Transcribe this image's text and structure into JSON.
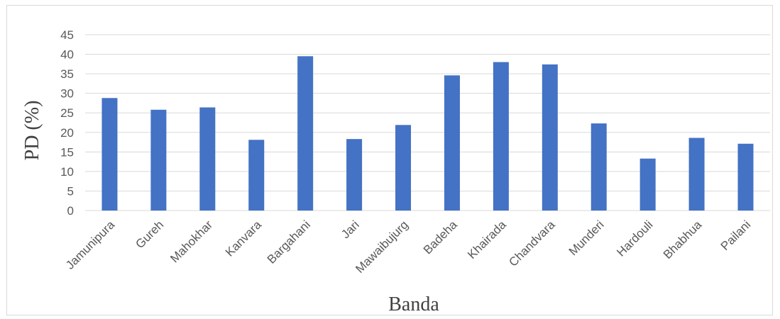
{
  "chart_data": {
    "type": "bar",
    "title": "",
    "xlabel": "Banda",
    "ylabel": "PD (%)",
    "ylim": [
      0,
      45
    ],
    "yticks": [
      0,
      5,
      10,
      15,
      20,
      25,
      30,
      35,
      40,
      45
    ],
    "grid": true,
    "legend": "none",
    "bar_color": "#4472C4",
    "categories": [
      "Jamunipura",
      "Gureh",
      "Mahokhar",
      "Kanvara",
      "Bargahani",
      "Jari",
      "Mawaibujurg",
      "Badeha",
      "Khairada",
      "Chandvara",
      "Munderi",
      "Hardouli",
      "Bhabhua",
      "Pailani"
    ],
    "values": [
      28.8,
      25.8,
      26.4,
      18.1,
      39.5,
      18.3,
      21.9,
      34.6,
      38.0,
      37.4,
      22.3,
      13.3,
      18.6,
      17.1
    ]
  }
}
